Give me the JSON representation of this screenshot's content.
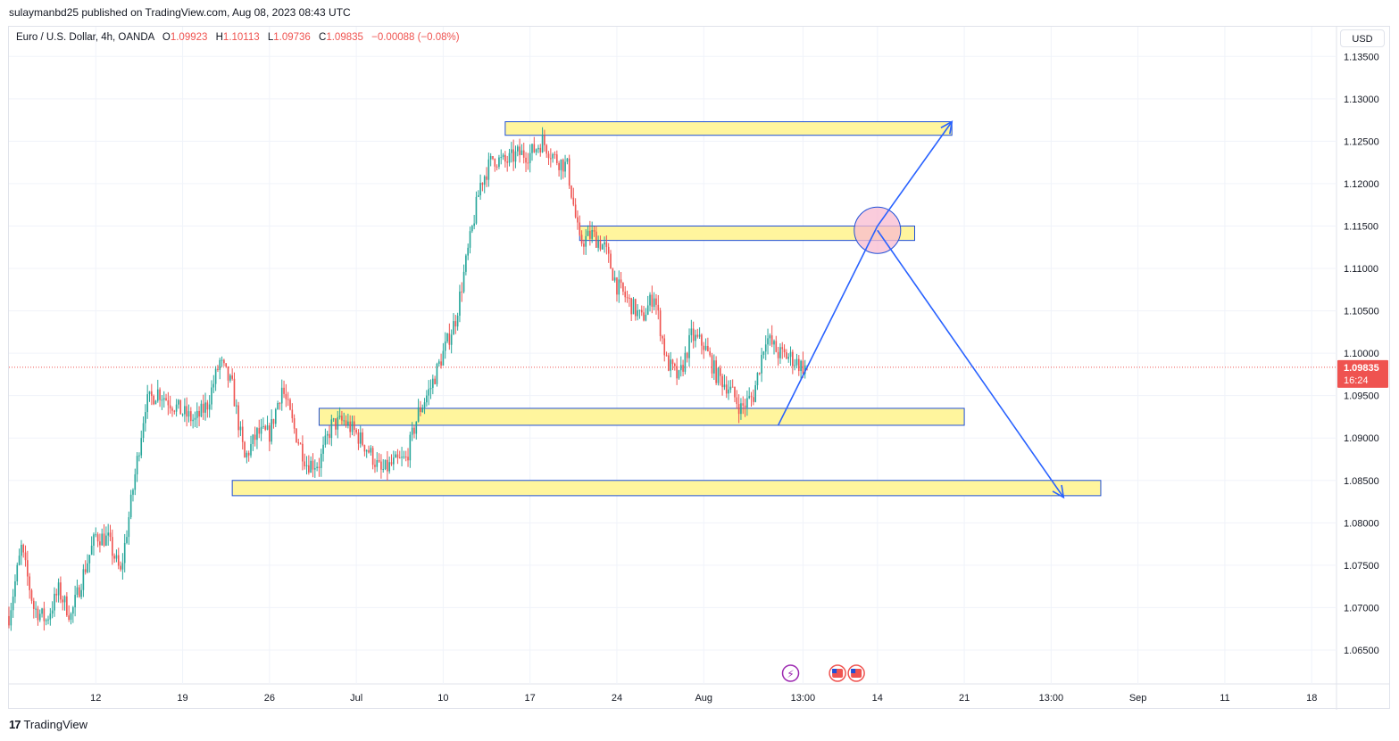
{
  "header": {
    "publisher_line": "sulaymanbd25 published on TradingView.com, Aug 08, 2023 08:43 UTC"
  },
  "legend": {
    "symbol": "Euro / U.S. Dollar, 4h, OANDA",
    "open_label": "O",
    "open": "1.09923",
    "high_label": "H",
    "high": "1.10113",
    "low_label": "L",
    "low": "1.09736",
    "close_label": "C",
    "close": "1.09835",
    "change": "−0.00088 (−0.08%)"
  },
  "currency_button": {
    "label": "USD"
  },
  "brand": {
    "name": "TradingView"
  },
  "colors": {
    "up": "#26a69a",
    "down": "#ef5350",
    "zone_fill": "#fff59d",
    "zone_border": "#1e4fd8",
    "arrow": "#2962ff",
    "price_badge": "#ef5350",
    "circle_fill": "#f8bbd0"
  },
  "chart_data": {
    "type": "candlestick",
    "y_ticks": [
      "1.13500",
      "1.13000",
      "1.12500",
      "1.12000",
      "1.11500",
      "1.11000",
      "1.10500",
      "1.10000",
      "1.09500",
      "1.09000",
      "1.08500",
      "1.08000",
      "1.07500",
      "1.07000",
      "1.06500"
    ],
    "ylim": [
      1.061,
      1.1385
    ],
    "x_ticks": [
      "12",
      "19",
      "26",
      "Jul",
      "10",
      "17",
      "24",
      "Aug",
      "13:00",
      "14",
      "21",
      "13:00",
      "Sep",
      "11",
      "18"
    ],
    "x_tick_dates": [
      "2023-06-12",
      "2023-06-19",
      "2023-06-26",
      "2023-07-03",
      "2023-07-10",
      "2023-07-17",
      "2023-07-24",
      "2023-07-31",
      "2023-08-08",
      "2023-08-14",
      "2023-08-21",
      "2023-08-28",
      "2023-09-04",
      "2023-09-11",
      "2023-09-18"
    ],
    "xlim": [
      "2023-06-05",
      "2023-09-20"
    ],
    "last_price": {
      "value": 1.09835,
      "label": "1.09835",
      "countdown": "16:24"
    },
    "price_series_approx": [
      {
        "date": "2023-06-05",
        "close": 1.069
      },
      {
        "date": "2023-06-06",
        "close": 1.077
      },
      {
        "date": "2023-06-07",
        "close": 1.07
      },
      {
        "date": "2023-06-08",
        "close": 1.0685
      },
      {
        "date": "2023-06-09",
        "close": 1.072
      },
      {
        "date": "2023-06-10",
        "close": 1.069
      },
      {
        "date": "2023-06-11",
        "close": 1.074
      },
      {
        "date": "2023-06-12",
        "close": 1.0785
      },
      {
        "date": "2023-06-13",
        "close": 1.078
      },
      {
        "date": "2023-06-14",
        "close": 1.074
      },
      {
        "date": "2023-06-15",
        "close": 1.084
      },
      {
        "date": "2023-06-16",
        "close": 1.094
      },
      {
        "date": "2023-06-17",
        "close": 1.0955
      },
      {
        "date": "2023-06-19",
        "close": 1.093
      },
      {
        "date": "2023-06-20",
        "close": 1.092
      },
      {
        "date": "2023-06-21",
        "close": 1.094
      },
      {
        "date": "2023-06-22",
        "close": 1.099
      },
      {
        "date": "2023-06-23",
        "close": 1.096
      },
      {
        "date": "2023-06-24",
        "close": 1.0875
      },
      {
        "date": "2023-06-25",
        "close": 1.0905
      },
      {
        "date": "2023-06-26",
        "close": 1.0905
      },
      {
        "date": "2023-06-27",
        "close": 1.096
      },
      {
        "date": "2023-06-28",
        "close": 1.091
      },
      {
        "date": "2023-06-29",
        "close": 1.087
      },
      {
        "date": "2023-06-30",
        "close": 1.087
      },
      {
        "date": "2023-07-01",
        "close": 1.0915
      },
      {
        "date": "2023-07-02",
        "close": 1.092
      },
      {
        "date": "2023-07-03",
        "close": 1.0905
      },
      {
        "date": "2023-07-04",
        "close": 1.0885
      },
      {
        "date": "2023-07-05",
        "close": 1.086
      },
      {
        "date": "2023-07-06",
        "close": 1.087
      },
      {
        "date": "2023-07-07",
        "close": 1.0875
      },
      {
        "date": "2023-07-08",
        "close": 1.093
      },
      {
        "date": "2023-07-09",
        "close": 1.096
      },
      {
        "date": "2023-07-10",
        "close": 1.1
      },
      {
        "date": "2023-07-11",
        "close": 1.104
      },
      {
        "date": "2023-07-12",
        "close": 1.112
      },
      {
        "date": "2023-07-13",
        "close": 1.12
      },
      {
        "date": "2023-07-14",
        "close": 1.123
      },
      {
        "date": "2023-07-15",
        "close": 1.1225
      },
      {
        "date": "2023-07-16",
        "close": 1.1235
      },
      {
        "date": "2023-07-17",
        "close": 1.1235
      },
      {
        "date": "2023-07-18",
        "close": 1.125
      },
      {
        "date": "2023-07-19",
        "close": 1.123
      },
      {
        "date": "2023-07-20",
        "close": 1.122
      },
      {
        "date": "2023-07-21",
        "close": 1.113
      },
      {
        "date": "2023-07-22",
        "close": 1.114
      },
      {
        "date": "2023-07-23",
        "close": 1.1125
      },
      {
        "date": "2023-07-24",
        "close": 1.108
      },
      {
        "date": "2023-07-25",
        "close": 1.106
      },
      {
        "date": "2023-07-26",
        "close": 1.104
      },
      {
        "date": "2023-07-27",
        "close": 1.107
      },
      {
        "date": "2023-07-28",
        "close": 1.099
      },
      {
        "date": "2023-07-29",
        "close": 1.097
      },
      {
        "date": "2023-07-30",
        "close": 1.102
      },
      {
        "date": "2023-07-31",
        "close": 1.101
      },
      {
        "date": "2023-08-01",
        "close": 1.0975
      },
      {
        "date": "2023-08-02",
        "close": 1.096
      },
      {
        "date": "2023-08-03",
        "close": 1.0935
      },
      {
        "date": "2023-08-04",
        "close": 1.095
      },
      {
        "date": "2023-08-05",
        "close": 1.102
      },
      {
        "date": "2023-08-06",
        "close": 1.1
      },
      {
        "date": "2023-08-07",
        "close": 1.0995
      },
      {
        "date": "2023-08-08",
        "close": 1.09835
      }
    ],
    "zones": [
      {
        "from": "2023-07-15",
        "to": "2023-08-20",
        "low": 1.1257,
        "high": 1.1273
      },
      {
        "from": "2023-07-21",
        "to": "2023-08-17",
        "low": 1.1133,
        "high": 1.115
      },
      {
        "from": "2023-06-30",
        "to": "2023-08-21",
        "low": 1.0915,
        "high": 1.0935
      },
      {
        "from": "2023-06-23",
        "to": "2023-09-01",
        "low": 1.0832,
        "high": 1.085
      }
    ],
    "projection_path": [
      {
        "date": "2023-08-06",
        "price": 1.0915
      },
      {
        "date": "2023-08-14",
        "price": 1.115
      },
      {
        "date": "2023-08-20",
        "price": 1.1273
      }
    ],
    "projection_path_2": [
      {
        "date": "2023-08-14",
        "price": 1.1145
      },
      {
        "date": "2023-08-29",
        "price": 1.083
      }
    ],
    "highlight_circle": {
      "date": "2023-08-14",
      "price": 1.1145
    }
  }
}
